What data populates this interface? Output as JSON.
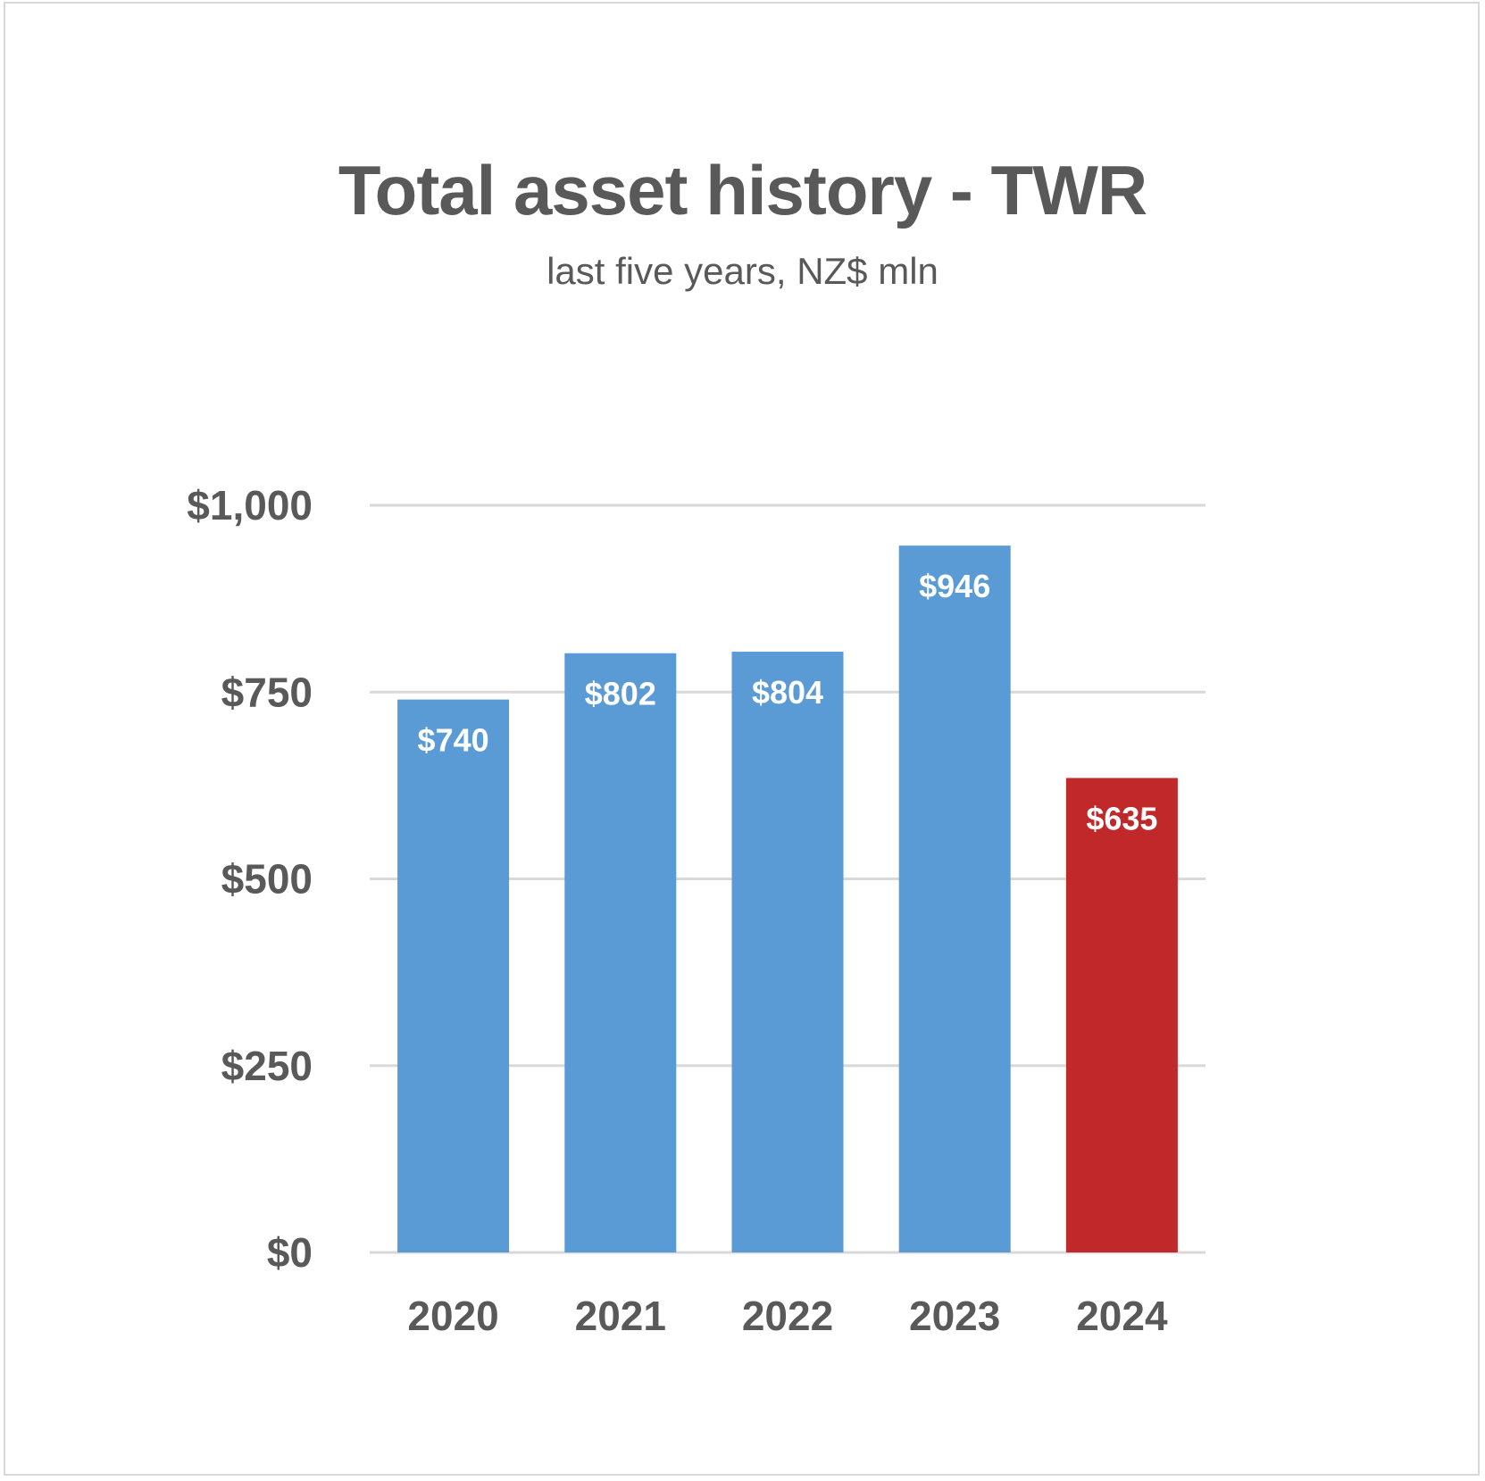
{
  "chart_data": {
    "type": "bar",
    "title": "Total asset history - TWR",
    "subtitle": "last five years, NZ$ mln",
    "xlabel": "",
    "ylabel": "",
    "categories": [
      "2020",
      "2021",
      "2022",
      "2023",
      "2024"
    ],
    "values": [
      740,
      802,
      804,
      946,
      635
    ],
    "data_labels": [
      "$740",
      "$802",
      "$804",
      "$946",
      "$635"
    ],
    "bar_colors": [
      "#5b9bd5",
      "#5b9bd5",
      "#5b9bd5",
      "#5b9bd5",
      "#c0282a"
    ],
    "ylim": [
      0,
      1000
    ],
    "y_ticks": [
      0,
      250,
      500,
      750,
      1000
    ],
    "y_tick_labels": [
      "$0",
      "$250",
      "$500",
      "$750",
      "$1,000"
    ],
    "grid": true,
    "gridline_color": "#d9d9d9",
    "legend": "none"
  }
}
